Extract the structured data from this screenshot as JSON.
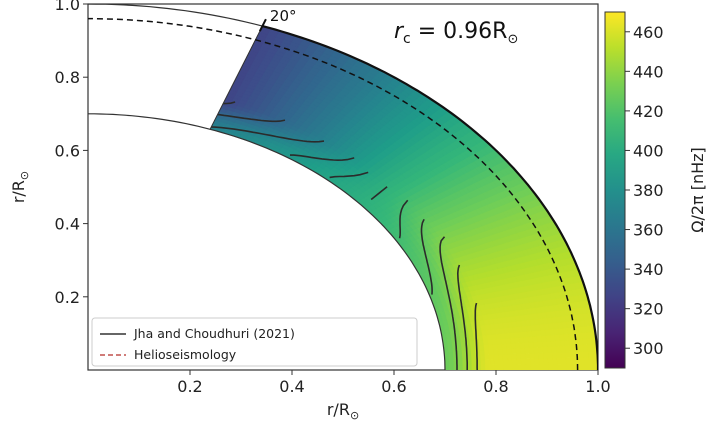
{
  "chart_data": {
    "type": "heatmap",
    "title": "",
    "annotation_rc": {
      "symbol": "r",
      "subscript": "c",
      "value_text": " = 0.96R",
      "unit_sub": "⊙"
    },
    "annotation_angle": "20°",
    "xlabel": {
      "base": "r/R",
      "sub": "⊙"
    },
    "ylabel": {
      "base": "r/R",
      "sub": "⊙"
    },
    "xlim": [
      0.0,
      1.0
    ],
    "ylim": [
      0.0,
      1.0
    ],
    "xticks": [
      "0.2",
      "0.4",
      "0.6",
      "0.8",
      "1.0"
    ],
    "xtick_values": [
      0.2,
      0.4,
      0.6,
      0.8,
      1.0
    ],
    "yticks": [
      "0.2",
      "0.4",
      "0.6",
      "0.8",
      "1.0"
    ],
    "ytick_values": [
      0.2,
      0.4,
      0.6,
      0.8,
      1.0
    ],
    "domain": {
      "r_inner": 0.7,
      "r_outer": 1.0,
      "theta_max_from_equator_deg": 70
    },
    "helioseismology_radius": 0.96,
    "colorbar": {
      "label": "Ω/2π [nHz]",
      "min": 290,
      "max": 470,
      "ticks": [
        300,
        320,
        340,
        360,
        380,
        400,
        420,
        440,
        460
      ],
      "tick_labels": [
        "300",
        "320",
        "340",
        "360",
        "380",
        "400",
        "420",
        "440",
        "460"
      ],
      "colormap": "viridis"
    },
    "contour_levels": [
      330,
      350,
      370,
      385,
      395,
      405,
      415,
      425,
      435,
      445,
      455
    ],
    "legend": {
      "placement": "lower-left",
      "entries": [
        {
          "label": "Jha and  Choudhuri (2021)",
          "style": "solid",
          "color": "#333333"
        },
        {
          "label": "Helioseismology",
          "style": "dashed",
          "color": "#c0504d"
        }
      ]
    }
  }
}
